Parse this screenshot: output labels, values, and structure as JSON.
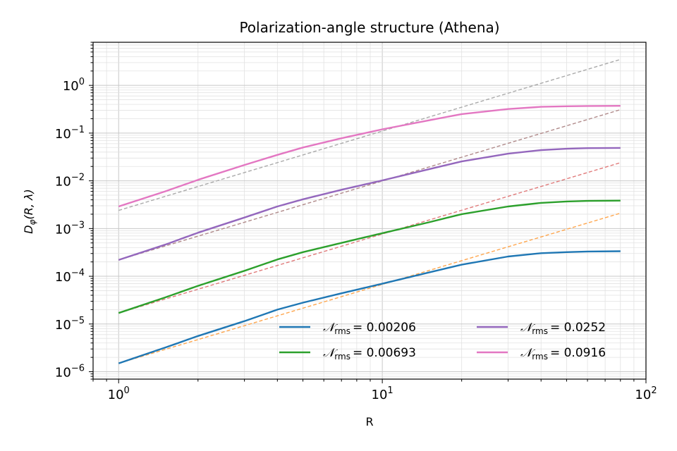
{
  "chart_data": {
    "type": "line",
    "title": "Polarization-angle structure (Athena)",
    "xlabel": "R",
    "ylabel_main": "D",
    "ylabel_sub": "φ",
    "ylabel_args": "(R, λ)",
    "xscale": "log",
    "yscale": "log",
    "xlim": [
      0.8,
      100
    ],
    "ylim": [
      7e-07,
      8
    ],
    "grid": true,
    "legend_placement": "lower-right",
    "x_ticks": [
      {
        "value": 1,
        "base": "10",
        "exp": "0"
      },
      {
        "value": 10,
        "base": "10",
        "exp": "1"
      },
      {
        "value": 100,
        "base": "10",
        "exp": "2"
      }
    ],
    "y_ticks": [
      {
        "value": 1e-06,
        "base": "10",
        "exp": "−6"
      },
      {
        "value": 1e-05,
        "base": "10",
        "exp": "−5"
      },
      {
        "value": 0.0001,
        "base": "10",
        "exp": "−4"
      },
      {
        "value": 0.001,
        "base": "10",
        "exp": "−3"
      },
      {
        "value": 0.01,
        "base": "10",
        "exp": "−2"
      },
      {
        "value": 0.1,
        "base": "10",
        "exp": "−1"
      },
      {
        "value": 1,
        "base": "10",
        "exp": "0"
      }
    ],
    "x": [
      1,
      1.5,
      2,
      3,
      4,
      5,
      7,
      10,
      15,
      20,
      30,
      40,
      50,
      60,
      80
    ],
    "series": [
      {
        "name_prefix": "𝒩",
        "name_sub": "rms",
        "name_value": "= 0.00206",
        "color": "#1f77b4",
        "values": [
          1.5e-06,
          3.2e-06,
          5.6e-06,
          1.15e-05,
          2e-05,
          2.8e-05,
          4.4e-05,
          7e-05,
          0.00012,
          0.000175,
          0.00026,
          0.000305,
          0.00032,
          0.00033,
          0.000335
        ]
      },
      {
        "name_prefix": "𝒩",
        "name_sub": "rms",
        "name_value": "= 0.00693",
        "color": "#2ca02c",
        "values": [
          1.7e-05,
          3.6e-05,
          6.3e-05,
          0.00013,
          0.000225,
          0.00032,
          0.0005,
          0.0008,
          0.00135,
          0.002,
          0.0029,
          0.00345,
          0.0037,
          0.0038,
          0.00385
        ]
      },
      {
        "name_prefix": "𝒩",
        "name_sub": "rms",
        "name_value": "= 0.0252",
        "color": "#9467bd",
        "values": [
          0.00022,
          0.00046,
          0.00082,
          0.0017,
          0.0029,
          0.0041,
          0.0065,
          0.0102,
          0.0175,
          0.0255,
          0.037,
          0.044,
          0.047,
          0.0485,
          0.049
        ]
      },
      {
        "name_prefix": "𝒩",
        "name_sub": "rms",
        "name_value": "= 0.0916",
        "color": "#e377c2",
        "values": [
          0.0029,
          0.006,
          0.0105,
          0.0215,
          0.035,
          0.05,
          0.078,
          0.12,
          0.185,
          0.25,
          0.32,
          0.355,
          0.365,
          0.37,
          0.372
        ]
      }
    ],
    "reference_lines": [
      {
        "color": "#ffa64d",
        "values": [
          1.5e-06,
          0.0021
        ]
      },
      {
        "color": "#e07a7a",
        "values": [
          1.7e-05,
          0.024
        ]
      },
      {
        "color": "#b08a8a",
        "values": [
          0.00022,
          0.31
        ]
      },
      {
        "color": "#aaaaaa",
        "values": [
          0.0024,
          3.5
        ]
      }
    ],
    "reference_x": [
      1,
      80
    ]
  }
}
